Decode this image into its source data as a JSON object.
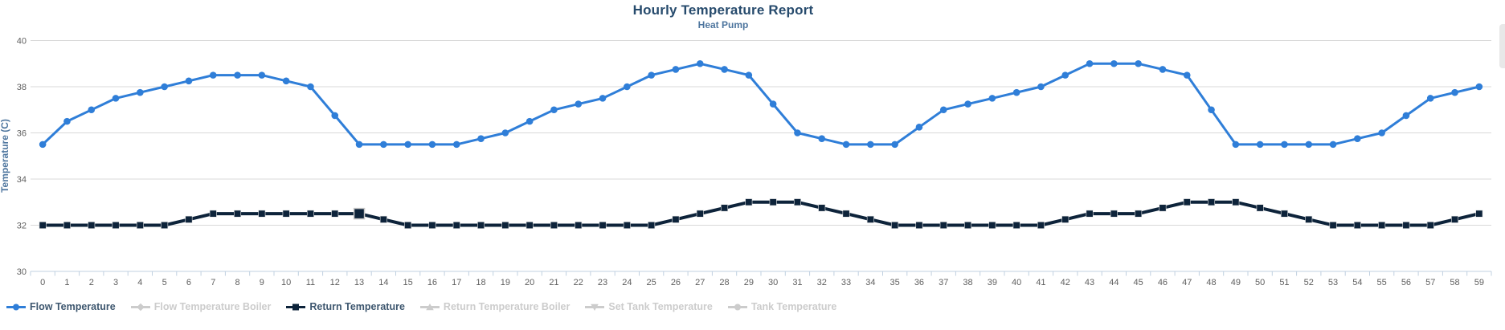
{
  "header": {
    "title": "Hourly Temperature Report",
    "subtitle": "Heat Pump"
  },
  "chart_data": {
    "type": "line",
    "title": "Hourly Temperature Report",
    "subtitle": "Heat Pump",
    "xlabel": "",
    "ylabel": "Temperature (C)",
    "ylim": [
      30,
      40
    ],
    "yticks": [
      30,
      32,
      34,
      36,
      38,
      40
    ],
    "grid": true,
    "legend_position": "bottom-left",
    "x": [
      0,
      1,
      2,
      3,
      4,
      5,
      6,
      7,
      8,
      9,
      10,
      11,
      12,
      13,
      14,
      15,
      16,
      17,
      18,
      19,
      20,
      21,
      22,
      23,
      24,
      25,
      26,
      27,
      28,
      29,
      30,
      31,
      32,
      33,
      34,
      35,
      36,
      37,
      38,
      39,
      40,
      41,
      42,
      43,
      44,
      45,
      46,
      47,
      48,
      49,
      50,
      51,
      52,
      53,
      54,
      55,
      56,
      57,
      58,
      59
    ],
    "series": [
      {
        "name": "Flow Temperature",
        "color": "#2f7ed8",
        "marker": "circle",
        "visible": true,
        "line_width": 3,
        "values": [
          35.5,
          36.5,
          37,
          37.5,
          37.75,
          38,
          38.25,
          38.5,
          38.5,
          38.5,
          38.25,
          38,
          36.75,
          35.5,
          35.5,
          35.5,
          35.5,
          35.5,
          35.75,
          36,
          36.5,
          37,
          37.25,
          37.5,
          38,
          38.5,
          38.75,
          39,
          38.75,
          38.5,
          37.25,
          36,
          35.75,
          35.5,
          35.5,
          35.5,
          36.25,
          37,
          37.25,
          37.5,
          37.75,
          38,
          38.5,
          39,
          39,
          39,
          38.75,
          38.5,
          37,
          35.5,
          35.5,
          35.5,
          35.5,
          35.5,
          35.75,
          36,
          36.75,
          37.5,
          37.75,
          38
        ]
      },
      {
        "name": "Flow Temperature Boiler",
        "color": "#cccccc",
        "marker": "diamond",
        "visible": false,
        "values": []
      },
      {
        "name": "Return Temperature",
        "color": "#0d233a",
        "marker": "square",
        "visible": true,
        "line_width": 4,
        "highlighted_point": 13,
        "values": [
          32,
          32,
          32,
          32,
          32,
          32,
          32.25,
          32.5,
          32.5,
          32.5,
          32.5,
          32.5,
          32.5,
          32.5,
          32.25,
          32,
          32,
          32,
          32,
          32,
          32,
          32,
          32,
          32,
          32,
          32,
          32.25,
          32.5,
          32.75,
          33,
          33,
          33,
          32.75,
          32.5,
          32.25,
          32,
          32,
          32,
          32,
          32,
          32,
          32,
          32.25,
          32.5,
          32.5,
          32.5,
          32.75,
          33,
          33,
          33,
          32.75,
          32.5,
          32.25,
          32,
          32,
          32,
          32,
          32,
          32.25,
          32.5
        ]
      },
      {
        "name": "Return Temperature Boiler",
        "color": "#cccccc",
        "marker": "triangle",
        "visible": false,
        "values": []
      },
      {
        "name": "Set Tank Temperature",
        "color": "#cccccc",
        "marker": "triangle-down",
        "visible": false,
        "values": []
      },
      {
        "name": "Tank Temperature",
        "color": "#cccccc",
        "marker": "circle",
        "visible": false,
        "values": []
      }
    ],
    "colors": {
      "grid_line": "#d8d8d8",
      "axis_line": "#c0d0e0",
      "tick_label": "#606060",
      "title": "#274b6d",
      "subtitle": "#4d759e",
      "legend_active_text": "#3e576f",
      "legend_hidden_text": "#cccccc",
      "highlight_halo": "#c8c8c8"
    }
  }
}
